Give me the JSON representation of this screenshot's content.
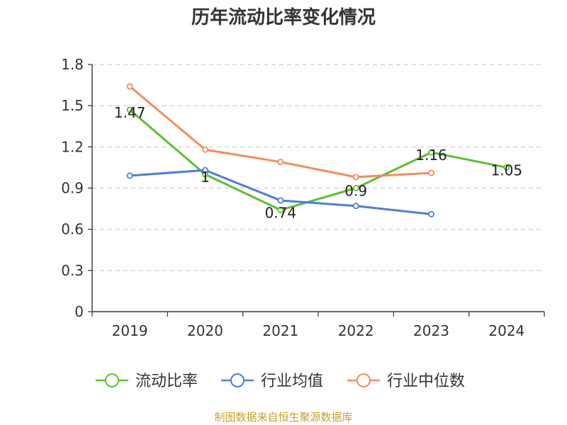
{
  "title": "历年流动比率变化情况",
  "source": "制图数据来自恒生聚源数据库",
  "colors": {
    "source_text": "#c8a030",
    "axis": "#333333",
    "grid": "#cccccc",
    "text": "#333333"
  },
  "chart_data": {
    "type": "line",
    "categories": [
      "2019",
      "2020",
      "2021",
      "2022",
      "2023",
      "2024"
    ],
    "ylim": [
      0,
      1.8
    ],
    "yticks": [
      "0",
      "0.3",
      "0.6",
      "0.9",
      "1.2",
      "1.5",
      "1.8"
    ],
    "grid": true,
    "legend_position": "bottom",
    "series": [
      {
        "name": "流动比率",
        "color": "#5ac12b",
        "values": [
          1.47,
          1.0,
          0.74,
          0.9,
          1.16,
          1.05
        ],
        "labels": [
          "1.47",
          "1",
          "0.74",
          "0.9",
          "1.16",
          "1.05"
        ]
      },
      {
        "name": "行业均值",
        "color": "#4b7fd9",
        "values": [
          0.99,
          1.03,
          0.81,
          0.77,
          0.71,
          null
        ],
        "labels": []
      },
      {
        "name": "行业中位数",
        "color": "#f58c5a",
        "values": [
          1.64,
          1.18,
          1.09,
          0.98,
          1.01,
          null
        ],
        "labels": []
      }
    ]
  }
}
